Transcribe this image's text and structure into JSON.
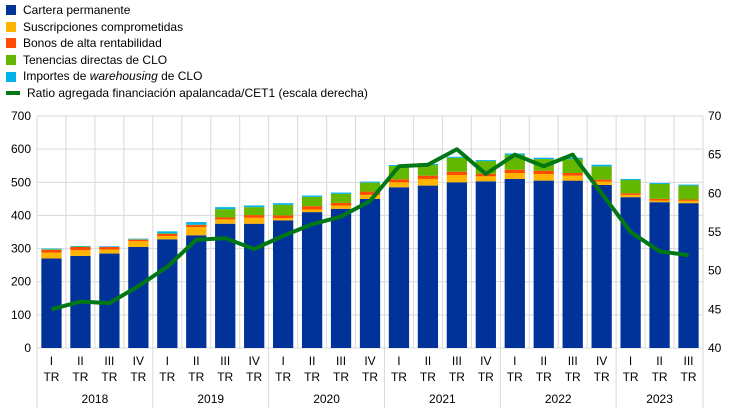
{
  "chart_data": {
    "type": "bar",
    "stacked": true,
    "quarters": [
      "I TR",
      "II TR",
      "III TR",
      "IV TR",
      "I TR",
      "II TR",
      "III TR",
      "IV TR",
      "I TR",
      "II TR",
      "III TR",
      "IV TR",
      "I TR",
      "II TR",
      "III TR",
      "IV TR",
      "I TR",
      "II TR",
      "III TR",
      "IV TR",
      "I TR",
      "II TR",
      "III TR"
    ],
    "quarter_top": [
      "I",
      "II",
      "III",
      "IV",
      "I",
      "II",
      "III",
      "IV",
      "I",
      "II",
      "III",
      "IV",
      "I",
      "II",
      "III",
      "IV",
      "I",
      "II",
      "III",
      "IV",
      "I",
      "II",
      "III"
    ],
    "quarter_bottom": "TR",
    "years": [
      {
        "label": "2018",
        "count": 4
      },
      {
        "label": "2019",
        "count": 4
      },
      {
        "label": "2020",
        "count": 4
      },
      {
        "label": "2021",
        "count": 4
      },
      {
        "label": "2022",
        "count": 4
      },
      {
        "label": "2023",
        "count": 3
      }
    ],
    "ylim": [
      0,
      700
    ],
    "yticks": [
      0,
      100,
      200,
      300,
      400,
      500,
      600,
      700
    ],
    "y2lim": [
      40,
      70
    ],
    "y2ticks": [
      40,
      45,
      50,
      55,
      60,
      65,
      70
    ],
    "grid": true,
    "legend": "top-left",
    "series": [
      {
        "name": "Cartera permanente",
        "color": "#003299",
        "values": [
          270,
          278,
          285,
          305,
          328,
          340,
          375,
          375,
          385,
          410,
          420,
          450,
          485,
          490,
          500,
          503,
          510,
          505,
          505,
          492,
          455,
          440,
          437
        ]
      },
      {
        "name": "Suscripciones comprometidas",
        "color": "#ffb400",
        "values": [
          18,
          17,
          12,
          17,
          10,
          25,
          13,
          18,
          7,
          8,
          10,
          12,
          15,
          20,
          22,
          15,
          18,
          20,
          15,
          10,
          7,
          5,
          7
        ]
      },
      {
        "name": "Bonos de alta rentabilidad",
        "color": "#ff4b00",
        "values": [
          8,
          10,
          8,
          5,
          6,
          6,
          6,
          8,
          8,
          10,
          8,
          10,
          9,
          10,
          10,
          8,
          10,
          10,
          8,
          6,
          5,
          5,
          4
        ]
      },
      {
        "name": "Tenencias directas de CLO",
        "color": "#65b800",
        "values": [
          2,
          1,
          0,
          1,
          2,
          1,
          25,
          24,
          32,
          28,
          27,
          27,
          40,
          32,
          42,
          38,
          45,
          35,
          42,
          40,
          40,
          45,
          42
        ]
      },
      {
        "name_parts": [
          "Importes de ",
          "warehousing",
          " de CLO"
        ],
        "color": "#00b1ea",
        "values": [
          2,
          2,
          2,
          2,
          6,
          8,
          6,
          5,
          5,
          4,
          4,
          3,
          3,
          3,
          3,
          3,
          4,
          4,
          4,
          5,
          3,
          3,
          3
        ]
      }
    ],
    "line": {
      "name": "Ratio agregada financiación apalancada/CET1 (escala derecha)",
      "color": "#007816",
      "axis": "right",
      "values": [
        45,
        46,
        45.8,
        48,
        50.5,
        54,
        54.2,
        52.8,
        54.5,
        56,
        57,
        59,
        63.5,
        63.7,
        65.7,
        62.5,
        65,
        63.5,
        65,
        60,
        55,
        52.5,
        52
      ]
    }
  }
}
